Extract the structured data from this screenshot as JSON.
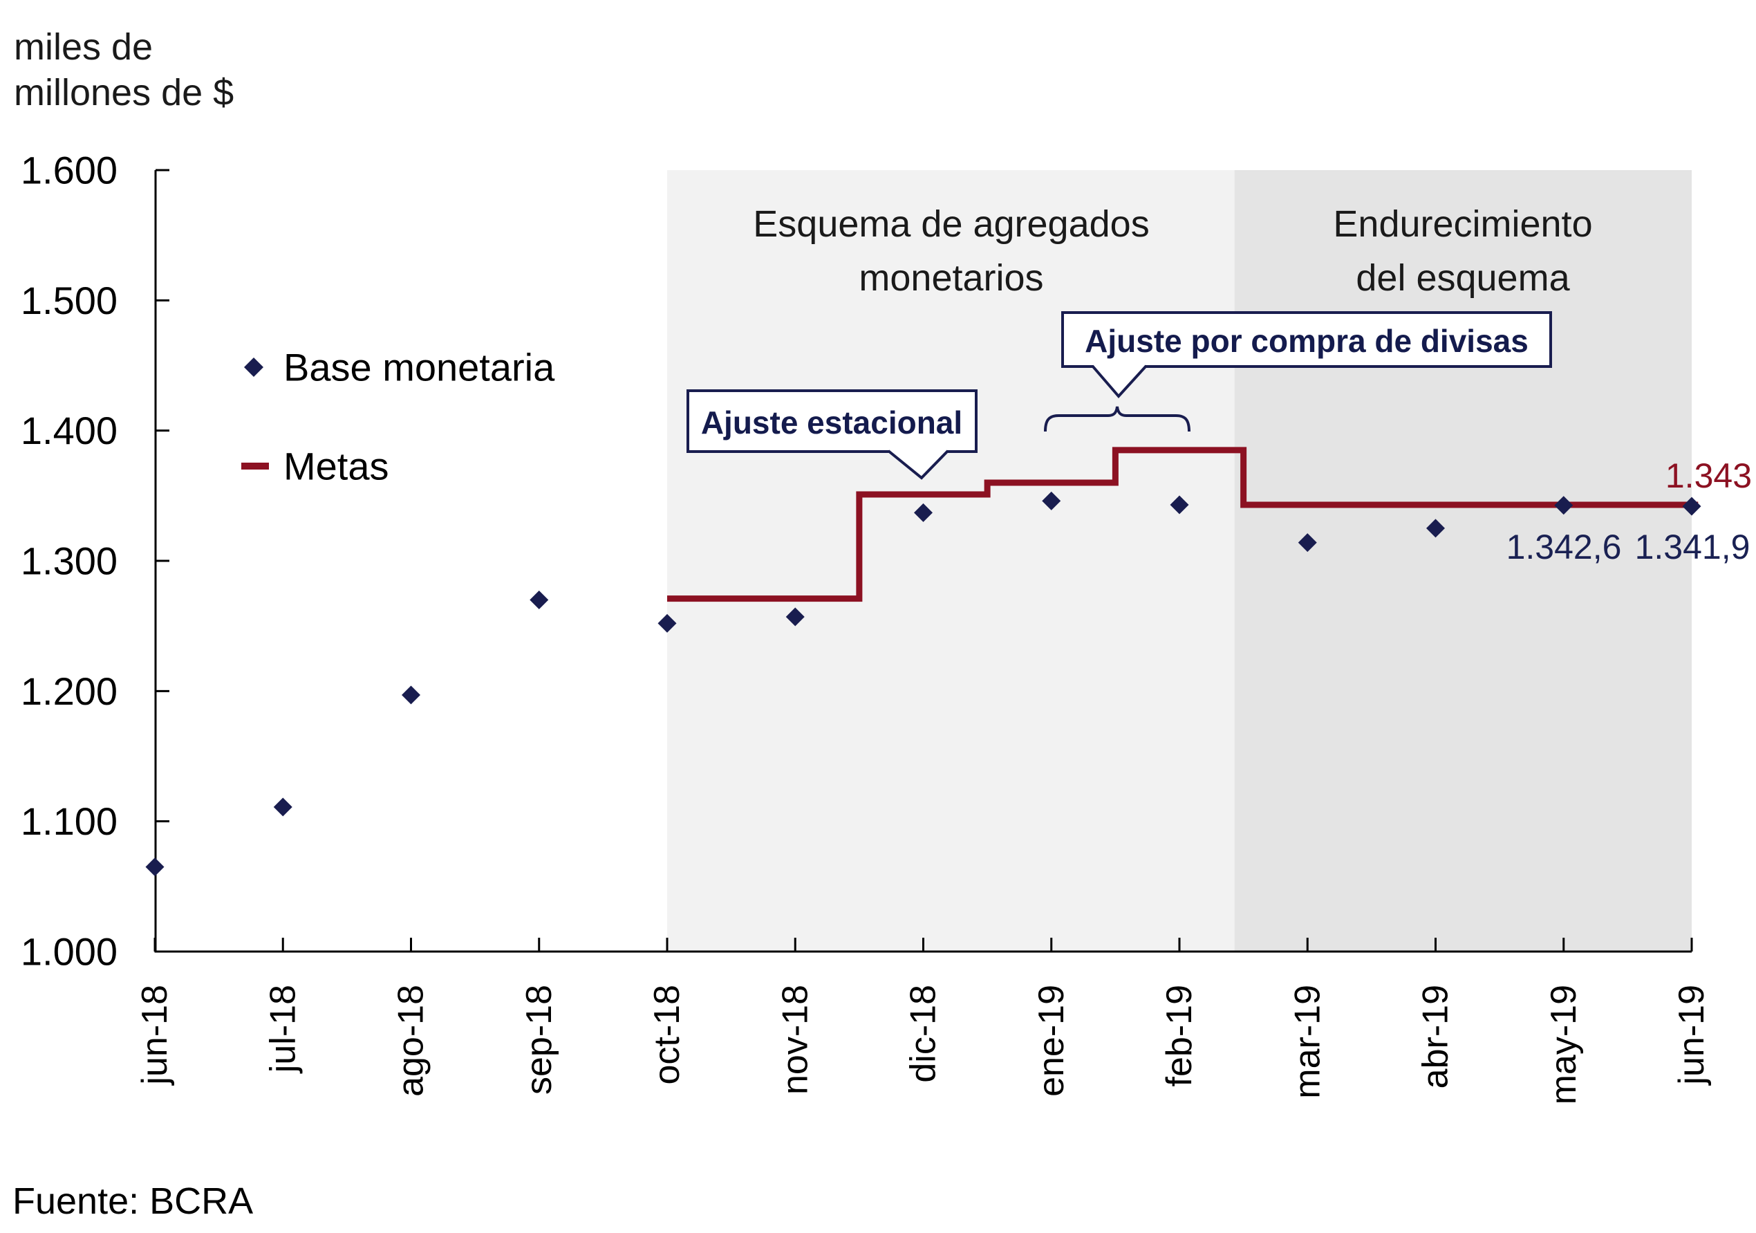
{
  "title": {
    "line1": "miles de",
    "line2": "millones de $"
  },
  "source": "Fuente: BCRA",
  "legend": {
    "base_label": "Base monetaria",
    "metas_label": "Metas"
  },
  "regions": [
    {
      "label_line1": "Esquema de agregados",
      "label_line2": "monetarios"
    },
    {
      "label_line1": "Endurecimiento",
      "label_line2": "del esquema"
    }
  ],
  "annotations": {
    "seasonal": "Ajuste estacional",
    "fx": "Ajuste por compra de divisas",
    "target_label": "1.343",
    "may_point_label": "1.342,6",
    "jun_point_label": "1.341,9"
  },
  "colors": {
    "navy": "#191d4f",
    "navy_text": "#1a2153",
    "red": "#8c1122",
    "region_light": "#f2f2f2",
    "region_dark": "#e4e4e4",
    "axis_black": "#000000",
    "region_title_color": "#1a1a1a"
  },
  "chart_data": {
    "type": "scatter",
    "title": "miles de millones de $",
    "ylabel": "miles de millones de $",
    "ylim": [
      1000,
      1600
    ],
    "grid": false,
    "legend_position": "upper-left-inside",
    "x_categories": [
      "jun-18",
      "jul-18",
      "ago-18",
      "sep-18",
      "oct-18",
      "nov-18",
      "dic-18",
      "ene-19",
      "feb-19",
      "mar-19",
      "abr-19",
      "may-19",
      "jun-19"
    ],
    "y_ticks": [
      {
        "value": 1600,
        "label": "1.600"
      },
      {
        "value": 1500,
        "label": "1.500"
      },
      {
        "value": 1400,
        "label": "1.400"
      },
      {
        "value": 1300,
        "label": "1.300"
      },
      {
        "value": 1200,
        "label": "1.200"
      },
      {
        "value": 1100,
        "label": "1.100"
      },
      {
        "value": 1000,
        "label": "1.000"
      }
    ],
    "series": [
      {
        "name": "Base monetaria",
        "type": "scatter",
        "marker": "diamond",
        "color": "#191d4f",
        "values": [
          1065,
          1111,
          1197,
          1270,
          1252,
          1257,
          1337,
          1346,
          1343,
          1314,
          1325,
          1342.6,
          1341.9
        ]
      },
      {
        "name": "Metas",
        "type": "step-line",
        "color": "#8c1122",
        "segments": [
          {
            "x_start": 4.0,
            "x_end": 5.5,
            "value": 1271
          },
          {
            "x_start": 5.5,
            "x_end": 6.5,
            "value": 1351
          },
          {
            "x_start": 6.5,
            "x_end": 7.5,
            "value": 1360
          },
          {
            "x_start": 7.5,
            "x_end": 8.5,
            "value": 1385
          },
          {
            "x_start": 8.5,
            "x_end": 12.05,
            "value": 1343
          }
        ]
      }
    ],
    "shaded_regions": [
      {
        "x_start": 4.0,
        "x_end": 8.43,
        "label": "Esquema de agregados monetarios",
        "color": "#f2f2f2"
      },
      {
        "x_start": 8.43,
        "x_end": 12.0,
        "label": "Endurecimiento del esquema",
        "color": "#e4e4e4"
      }
    ],
    "point_labels": [
      {
        "series": "Metas",
        "x": "jun-19",
        "text": "1.343",
        "color": "#8c1122"
      },
      {
        "series": "Base monetaria",
        "x": "may-19",
        "text": "1.342,6",
        "color": "#1a2153"
      },
      {
        "series": "Base monetaria",
        "x": "jun-19",
        "text": "1.341,9",
        "color": "#1a2153"
      }
    ],
    "callouts": [
      {
        "text": "Ajuste estacional",
        "points_to": "dic-18 step of Metas"
      },
      {
        "text": "Ajuste por compra de divisas",
        "points_to": "ene-19 / feb-19 steps of Metas (brace)"
      }
    ]
  }
}
